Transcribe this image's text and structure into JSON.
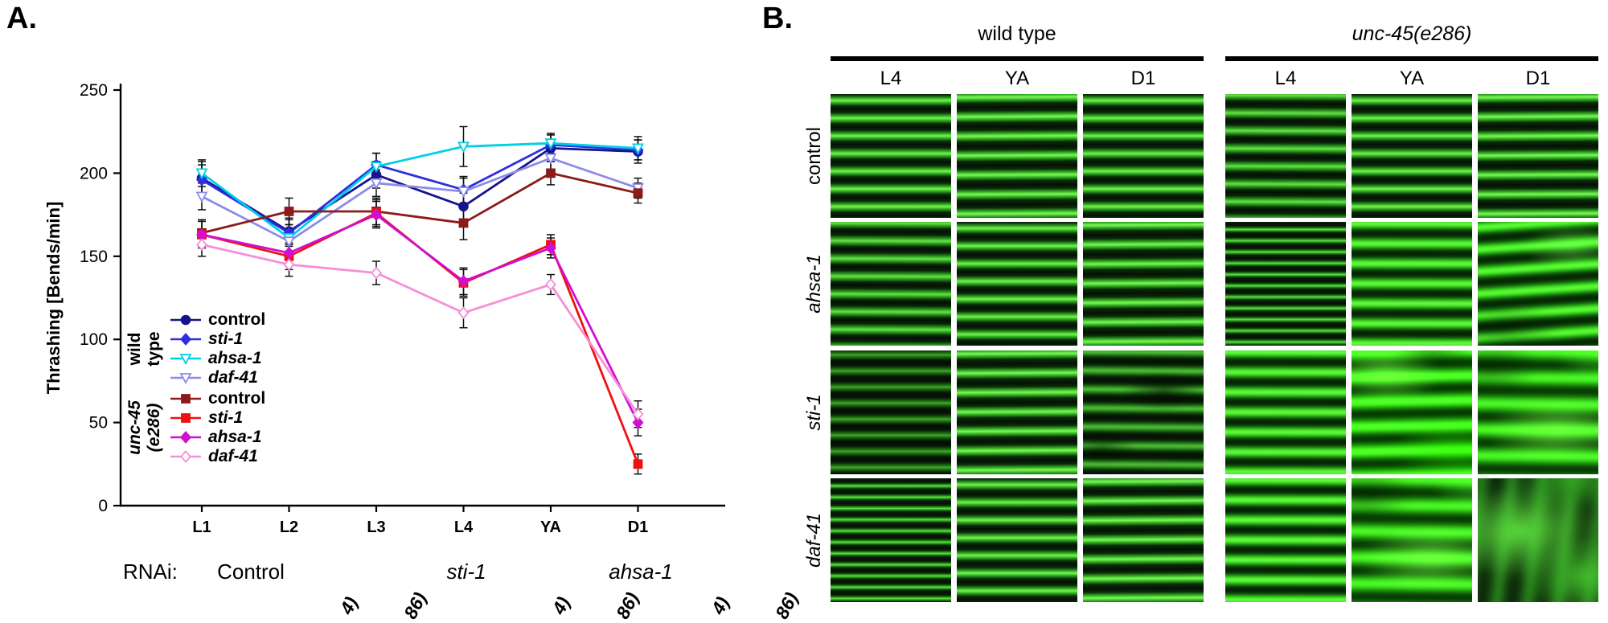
{
  "figure": {
    "panelA": {
      "label": "A.",
      "rnai": {
        "label": "RNAi:",
        "groups": [
          {
            "text": "Control",
            "italic": false
          },
          {
            "text": "sti-1",
            "italic": true
          },
          {
            "text": "ahsa-1",
            "italic": true
          }
        ],
        "clipped_fragments": [
          "4)",
          "86)",
          "4)",
          "86)",
          "4)",
          "86)"
        ]
      }
    },
    "panelB": {
      "label": "B.",
      "column_groups": [
        {
          "label": "wild type",
          "italic": false
        },
        {
          "label": "unc-45(e286)",
          "italic": true
        }
      ],
      "stage_headers": [
        "L4",
        "YA",
        "D1"
      ],
      "rows": [
        {
          "label": "control",
          "italic": false,
          "patterns": [
            "crisp",
            "crisp2",
            "crisp",
            "crisp3",
            "crisp",
            "crisp2"
          ]
        },
        {
          "label": "ahsa-1",
          "italic": true,
          "patterns": [
            "crisp3",
            "crisp",
            "crisp2",
            "dense",
            "semi",
            "blur"
          ]
        },
        {
          "label": "sti-1",
          "italic": true,
          "patterns": [
            "dim",
            "crisp2",
            "semidark",
            "semi",
            "messy",
            "messy2"
          ]
        },
        {
          "label": "daf-41",
          "italic": true,
          "patterns": [
            "dense",
            "crisp",
            "crisp2",
            "semi",
            "messy2",
            "diffuse"
          ]
        }
      ],
      "scale_bar": true
    }
  },
  "chart_data": {
    "type": "line",
    "title": "",
    "xlabel": "",
    "ylabel": "Thrashing [Bends/min]",
    "categories": [
      "L1",
      "L2",
      "L3",
      "L4",
      "YA",
      "D1"
    ],
    "ylim": [
      0,
      250
    ],
    "yticks": [
      0,
      50,
      100,
      150,
      200,
      250
    ],
    "grid": false,
    "legend_position": "inside-left",
    "legend_groups": [
      {
        "label": "wild type",
        "lines": [
          "wild",
          "type"
        ],
        "italic": false
      },
      {
        "label": "unc-45 (e286)",
        "lines": [
          "unc-45",
          "(e286)"
        ],
        "italic": true
      }
    ],
    "series": [
      {
        "group": "wild type",
        "name": "control",
        "color": "#14148c",
        "marker": "circle",
        "filled": true,
        "italic": false,
        "values": [
          197,
          165,
          199,
          180,
          215,
          213
        ],
        "err": [
          10,
          8,
          8,
          8,
          8,
          7
        ]
      },
      {
        "group": "wild type",
        "name": "sti-1",
        "color": "#2e2ee0",
        "marker": "diamond",
        "filled": true,
        "italic": true,
        "values": [
          196,
          164,
          205,
          190,
          217,
          214
        ],
        "err": [
          9,
          8,
          7,
          8,
          6,
          6
        ]
      },
      {
        "group": "wild type",
        "name": "ahsa-1",
        "color": "#00cfe8",
        "marker": "triangle-down",
        "filled": false,
        "italic": true,
        "values": [
          200,
          161,
          204,
          216,
          218,
          215
        ],
        "err": [
          8,
          8,
          8,
          12,
          6,
          7
        ]
      },
      {
        "group": "wild type",
        "name": "daf-41",
        "color": "#8c8ce8",
        "marker": "triangle-down",
        "filled": false,
        "italic": true,
        "values": [
          186,
          159,
          194,
          189,
          209,
          191
        ],
        "err": [
          8,
          7,
          8,
          8,
          7,
          6
        ]
      },
      {
        "group": "unc-45 (e286)",
        "name": "control",
        "color": "#8c1a1a",
        "marker": "square",
        "filled": true,
        "italic": false,
        "values": [
          164,
          177,
          177,
          170,
          200,
          188
        ],
        "err": [
          8,
          8,
          8,
          10,
          7,
          6
        ]
      },
      {
        "group": "unc-45 (e286)",
        "name": "sti-1",
        "color": "#ee1111",
        "marker": "square",
        "filled": true,
        "italic": true,
        "values": [
          163,
          150,
          176,
          134,
          157,
          25
        ],
        "err": [
          8,
          8,
          8,
          8,
          6,
          6
        ]
      },
      {
        "group": "unc-45 (e286)",
        "name": "ahsa-1",
        "color": "#cf10cf",
        "marker": "diamond",
        "filled": true,
        "italic": true,
        "values": [
          163,
          152,
          175,
          135,
          155,
          50
        ],
        "err": [
          8,
          8,
          8,
          8,
          6,
          8
        ]
      },
      {
        "group": "unc-45 (e286)",
        "name": "daf-41",
        "color": "#f48fd8",
        "marker": "diamond",
        "filled": false,
        "italic": true,
        "values": [
          157,
          145,
          140,
          116,
          133,
          55
        ],
        "err": [
          7,
          7,
          7,
          9,
          6,
          8
        ]
      }
    ]
  }
}
